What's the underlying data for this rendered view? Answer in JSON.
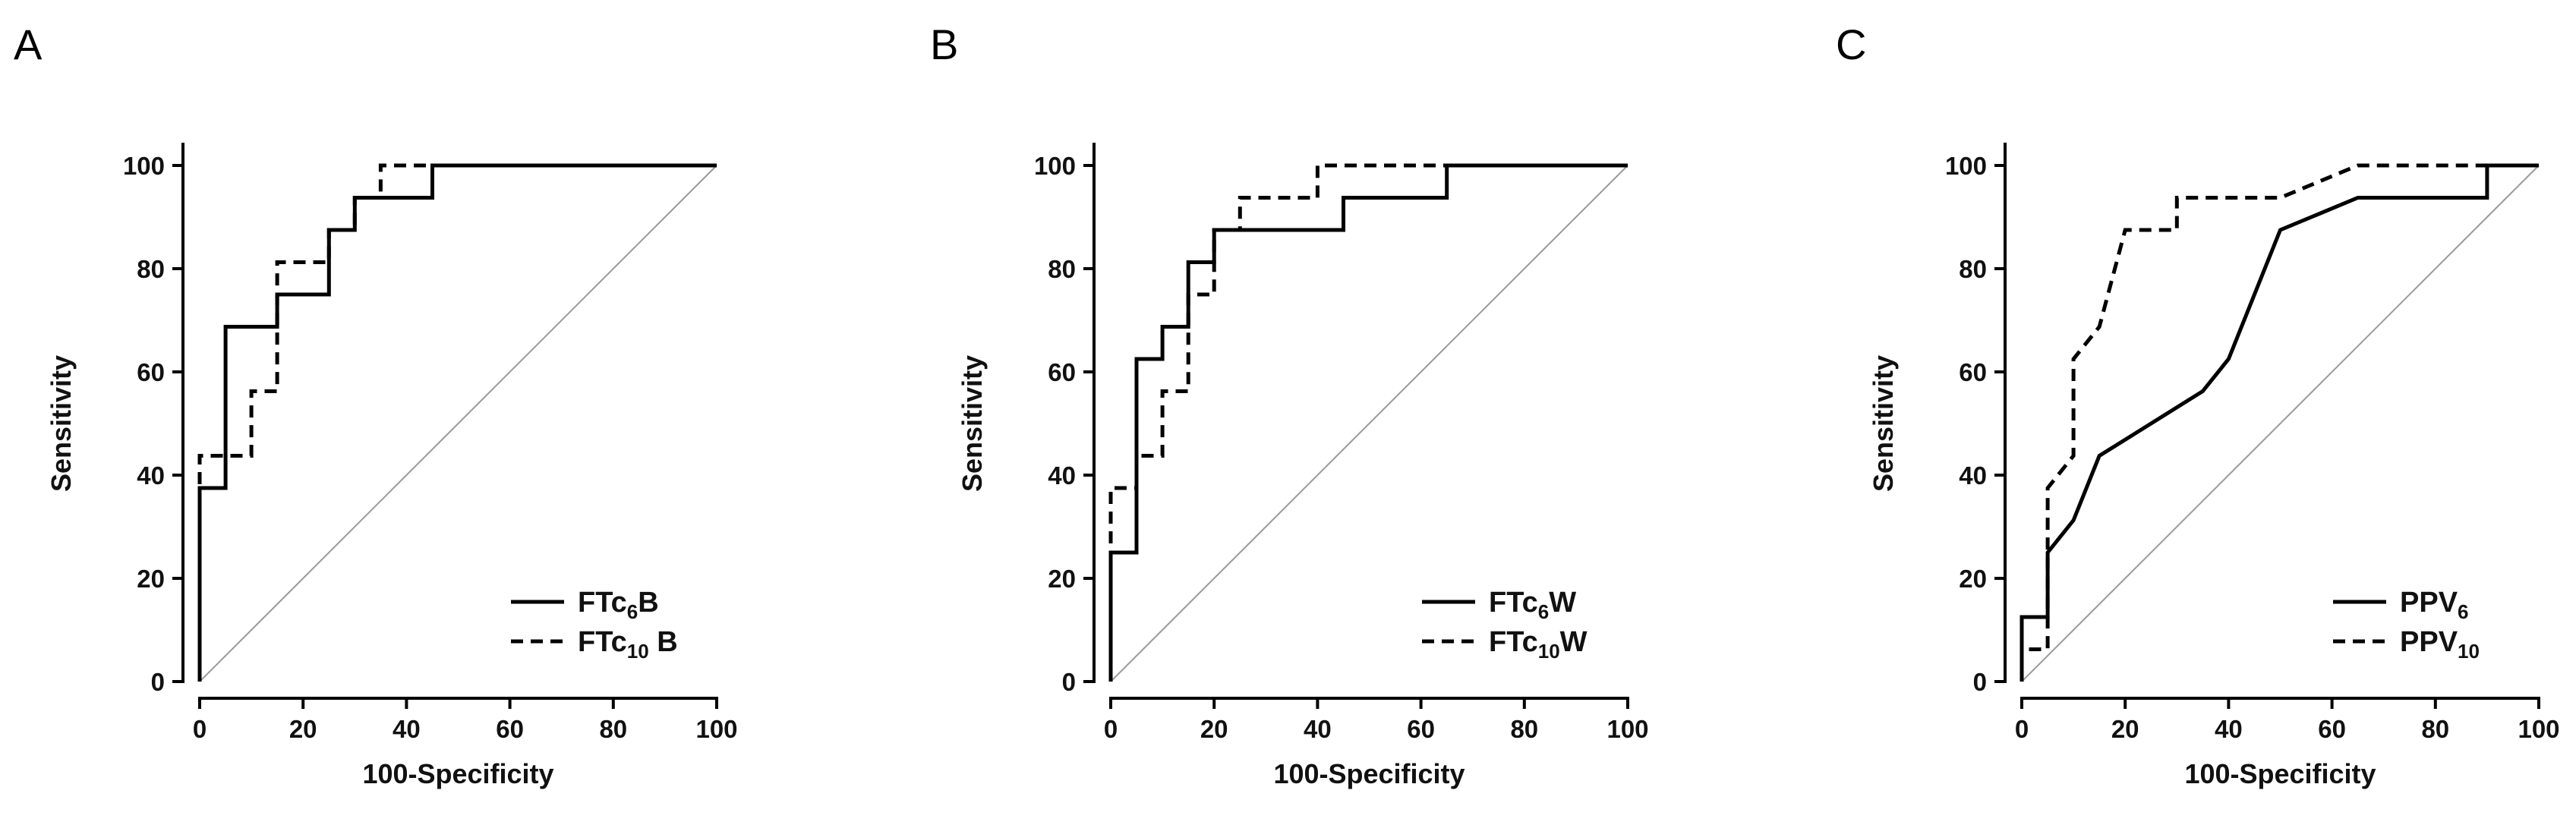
{
  "chart_data": [
    {
      "panel": "A",
      "type": "line",
      "xlabel": "100-Specificity",
      "ylabel": "Sensitivity",
      "xlim": [
        0,
        100
      ],
      "ylim": [
        0,
        100
      ],
      "xticks": [
        "0",
        "20",
        "40",
        "60",
        "80",
        "100"
      ],
      "yticks": [
        "0",
        "20",
        "40",
        "60",
        "80",
        "100"
      ],
      "legend_position": "bottom-right",
      "series": [
        {
          "name": "FTc6B",
          "legend": {
            "pre": "FTc",
            "sub": "6",
            "post": "B"
          },
          "style": "solid",
          "x": [
            0,
            0,
            0,
            5,
            5,
            15,
            15,
            25,
            25,
            27.5,
            27.5,
            30,
            30,
            45,
            45,
            100
          ],
          "y": [
            0,
            37.5,
            37.5,
            37.5,
            68.75,
            68.75,
            75,
            75,
            87.5,
            87.5,
            87.5,
            87.5,
            93.75,
            93.75,
            100,
            100
          ]
        },
        {
          "name": "FTc10B",
          "legend": {
            "pre": "FTc",
            "sub": "10",
            "post": " B"
          },
          "style": "dashed",
          "x": [
            0,
            0,
            5,
            5,
            10,
            10,
            15,
            15,
            25,
            25,
            30,
            30,
            35,
            35,
            100
          ],
          "y": [
            0,
            43.75,
            43.75,
            43.75,
            43.75,
            56.25,
            56.25,
            81.25,
            81.25,
            87.5,
            87.5,
            93.75,
            93.75,
            100,
            100
          ]
        }
      ]
    },
    {
      "panel": "B",
      "type": "line",
      "xlabel": "100-Specificity",
      "ylabel": "Sensitivity",
      "xlim": [
        0,
        100
      ],
      "ylim": [
        0,
        100
      ],
      "xticks": [
        "0",
        "20",
        "40",
        "60",
        "80",
        "100"
      ],
      "yticks": [
        "0",
        "20",
        "40",
        "60",
        "80",
        "100"
      ],
      "legend_position": "bottom-right",
      "series": [
        {
          "name": "FTc6W",
          "legend": {
            "pre": "FTc",
            "sub": "6",
            "post": "W"
          },
          "style": "solid",
          "x": [
            0,
            0,
            5,
            5,
            10,
            10,
            15,
            15,
            20,
            20,
            45,
            45,
            65,
            65,
            100
          ],
          "y": [
            0,
            25,
            25,
            62.5,
            62.5,
            68.75,
            68.75,
            81.25,
            81.25,
            87.5,
            87.5,
            93.75,
            93.75,
            100,
            100
          ]
        },
        {
          "name": "FTc10W",
          "legend": {
            "pre": "FTc",
            "sub": "10",
            "post": "W"
          },
          "style": "dashed",
          "x": [
            0,
            0,
            5,
            5,
            10,
            10,
            15,
            15,
            20,
            20,
            25,
            25,
            40,
            40,
            100
          ],
          "y": [
            0,
            37.5,
            37.5,
            43.75,
            43.75,
            56.25,
            56.25,
            75,
            75,
            87.5,
            87.5,
            93.75,
            93.75,
            100,
            100
          ]
        }
      ]
    },
    {
      "panel": "C",
      "type": "line",
      "xlabel": "100-Specificity",
      "ylabel": "Sensitivity",
      "xlim": [
        0,
        100
      ],
      "ylim": [
        0,
        100
      ],
      "xticks": [
        "0",
        "20",
        "40",
        "60",
        "80",
        "100"
      ],
      "yticks": [
        "0",
        "20",
        "40",
        "60",
        "80",
        "100"
      ],
      "legend_position": "bottom-right",
      "series": [
        {
          "name": "PPV6",
          "legend": {
            "pre": "PPV",
            "sub": "6",
            "post": ""
          },
          "style": "solid",
          "x": [
            0,
            0,
            5,
            5,
            10,
            15,
            35,
            40,
            50,
            65,
            90,
            90,
            100
          ],
          "y": [
            0,
            12.5,
            12.5,
            25,
            31.25,
            43.75,
            56.25,
            62.5,
            87.5,
            93.75,
            93.75,
            100,
            100
          ]
        },
        {
          "name": "PPV10",
          "legend": {
            "pre": "PPV",
            "sub": "10",
            "post": ""
          },
          "style": "dashed",
          "x": [
            0,
            0,
            5,
            5,
            10,
            10,
            15,
            20,
            30,
            30,
            50,
            65,
            100
          ],
          "y": [
            0,
            6.25,
            6.25,
            37.5,
            43.75,
            62.5,
            68.75,
            87.5,
            87.5,
            93.75,
            93.75,
            100,
            100
          ]
        }
      ]
    }
  ]
}
